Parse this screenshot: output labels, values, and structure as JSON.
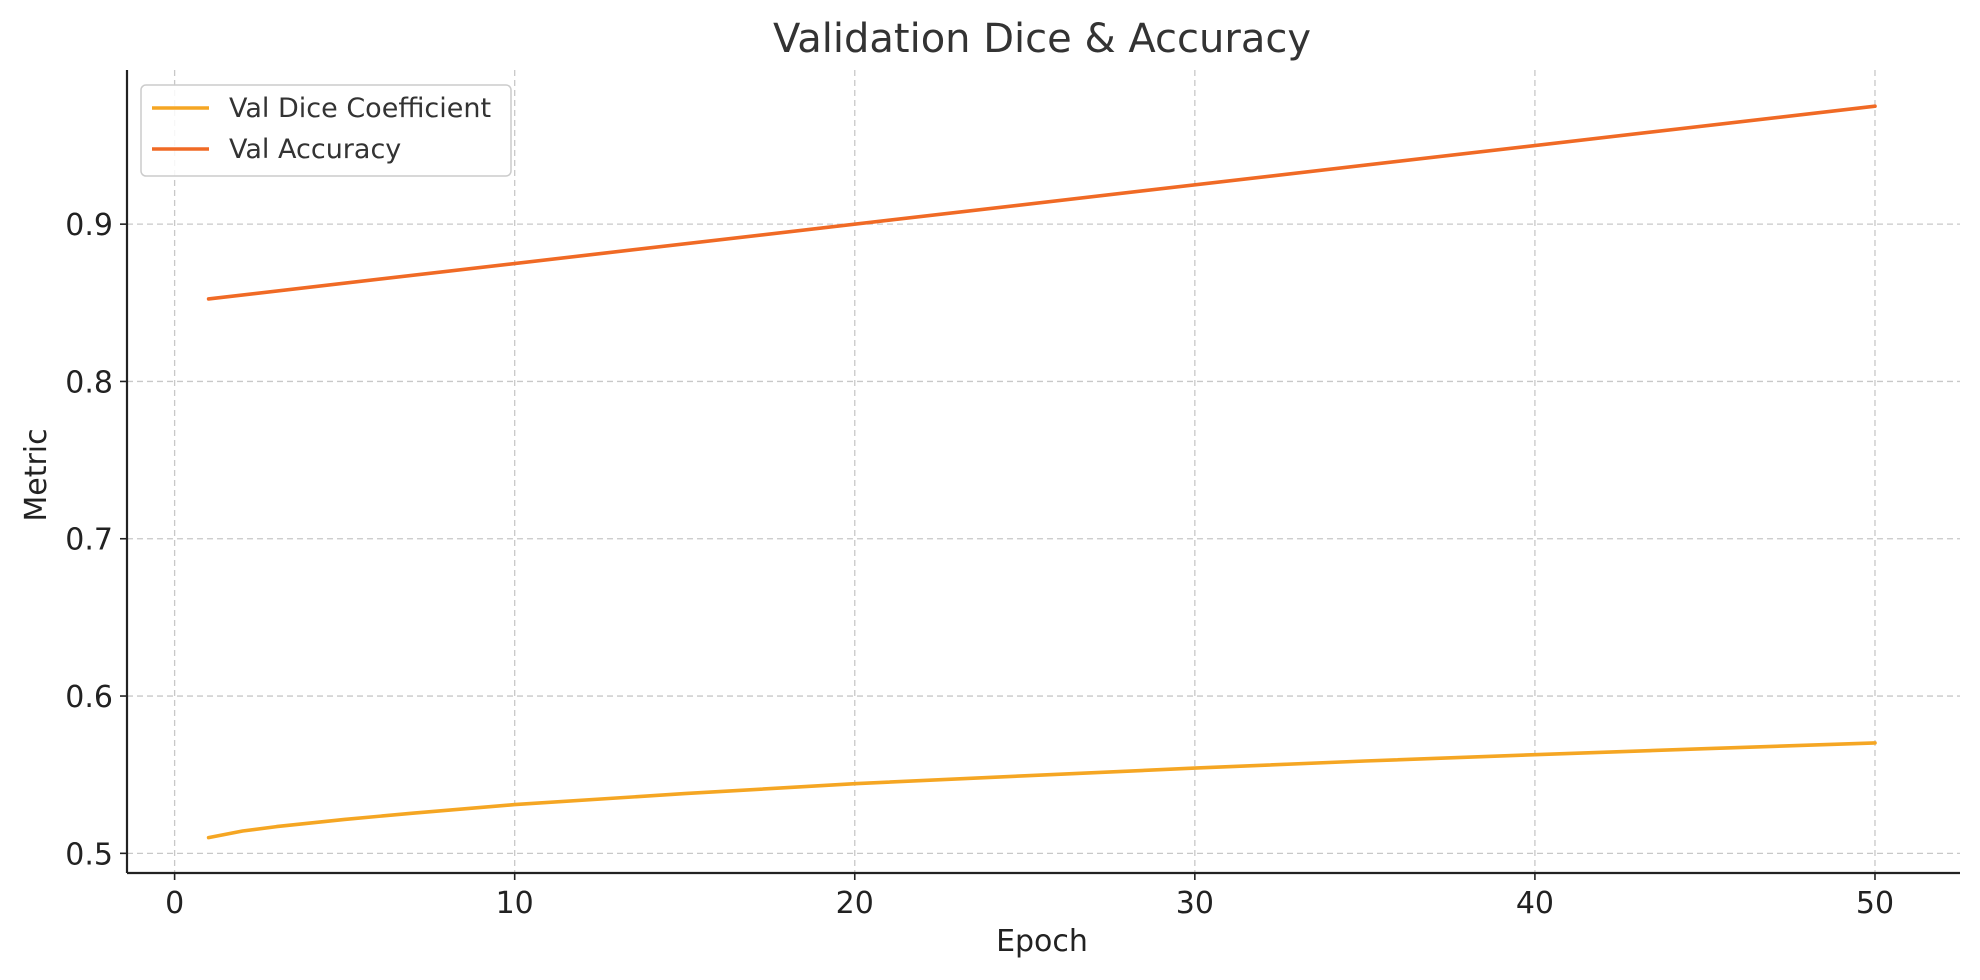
{
  "chart_data": {
    "type": "line",
    "title": "Validation Dice & Accuracy",
    "xlabel": "Epoch",
    "ylabel": "Metric",
    "xlim": [
      -1.4,
      52.5
    ],
    "ylim": [
      0.4875,
      0.998
    ],
    "xticks": [
      0,
      10,
      20,
      30,
      40,
      50
    ],
    "yticks": [
      0.5,
      0.6,
      0.7,
      0.8,
      0.9
    ],
    "ytick_labels": [
      "0.5",
      "0.6",
      "0.7",
      "0.8",
      "0.9"
    ],
    "grid": true,
    "legend_position": "top-left",
    "series": [
      {
        "name": "Val Dice Coefficient",
        "color": "#f5a623",
        "x": [
          1,
          2,
          3,
          5,
          7,
          10,
          15,
          20,
          25,
          30,
          35,
          40,
          45,
          50
        ],
        "values": [
          0.51,
          0.5142,
          0.517,
          0.5216,
          0.5255,
          0.531,
          0.538,
          0.5443,
          0.5493,
          0.5542,
          0.5587,
          0.5627,
          0.5665,
          0.5702
        ]
      },
      {
        "name": "Val Accuracy",
        "color": "#f06a25",
        "x": [
          1,
          50
        ],
        "values": [
          0.8525,
          0.975
        ]
      }
    ]
  }
}
